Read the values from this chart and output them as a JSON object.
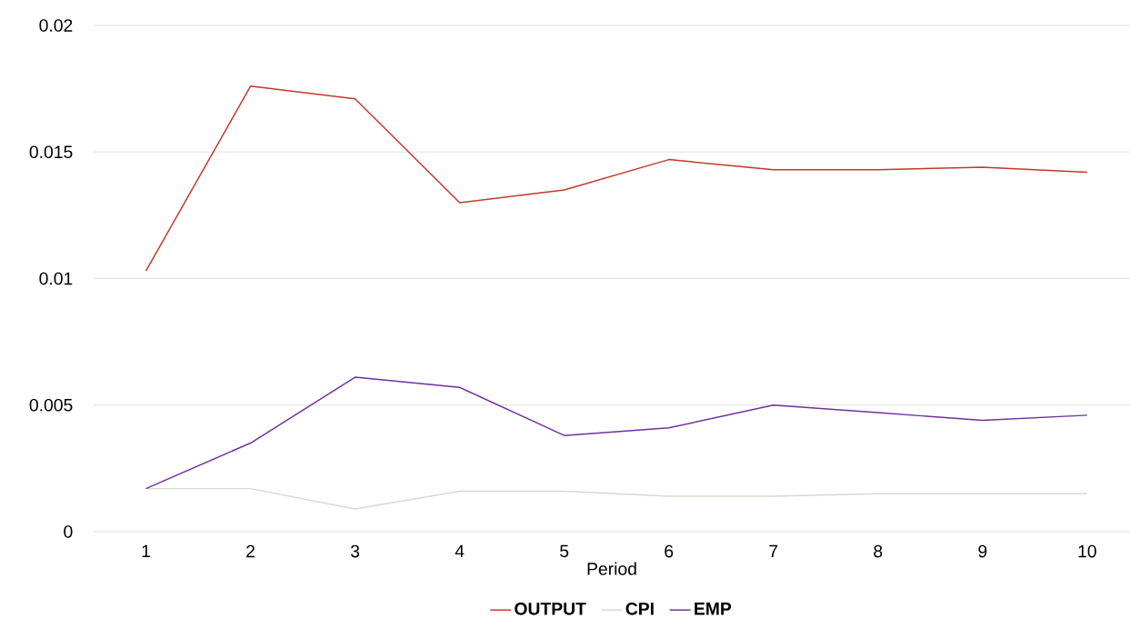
{
  "chart_data": {
    "type": "line",
    "xlabel": "Period",
    "categories": [
      "1",
      "2",
      "3",
      "4",
      "5",
      "6",
      "7",
      "8",
      "9",
      "10"
    ],
    "series": [
      {
        "name": "OUTPUT",
        "color": "#c0392b",
        "values": [
          0.0103,
          0.0176,
          0.0171,
          0.013,
          0.0135,
          0.0147,
          0.0143,
          0.0143,
          0.0144,
          0.0142
        ]
      },
      {
        "name": "CPI",
        "color": "#d9d9d0",
        "values": [
          0.0017,
          0.0017,
          0.0009,
          0.0016,
          0.0016,
          0.0014,
          0.0014,
          0.0015,
          0.0015,
          0.0015
        ]
      },
      {
        "name": "EMP",
        "color": "#7030a0",
        "values": [
          0.0017,
          0.0035,
          0.0061,
          0.0057,
          0.0038,
          0.0041,
          0.005,
          0.0047,
          0.0044,
          0.0046
        ]
      }
    ],
    "ylim": [
      0,
      0.02
    ],
    "yticks": [
      0,
      0.005,
      0.01,
      0.015,
      0.02
    ],
    "grid": "y",
    "legend": "bottom",
    "marker": "none",
    "line_style": "solid"
  }
}
